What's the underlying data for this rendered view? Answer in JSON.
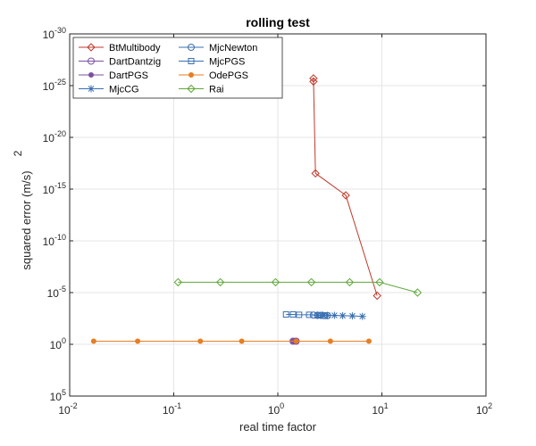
{
  "chart_data": {
    "type": "line",
    "title": "rolling test",
    "xlabel": "real time factor",
    "ylabel": "squared error (m/s)",
    "ylabel_superscript": "2",
    "x_scale": "log",
    "y_scale": "log",
    "y_direction": "reverse",
    "xlim": [
      0.01,
      100
    ],
    "ylim": [
      1e-30,
      100000.0
    ],
    "x_ticks": [
      {
        "base": "10",
        "exp": "-2"
      },
      {
        "base": "10",
        "exp": "-1"
      },
      {
        "base": "10",
        "exp": "0"
      },
      {
        "base": "10",
        "exp": "1"
      },
      {
        "base": "10",
        "exp": "2"
      }
    ],
    "y_ticks": [
      {
        "base": "10",
        "exp": "-30"
      },
      {
        "base": "10",
        "exp": "-25"
      },
      {
        "base": "10",
        "exp": "-20"
      },
      {
        "base": "10",
        "exp": "-15"
      },
      {
        "base": "10",
        "exp": "-10"
      },
      {
        "base": "10",
        "exp": "-5"
      },
      {
        "base": "10",
        "exp": "0"
      },
      {
        "base": "10",
        "exp": "5"
      }
    ],
    "grid": true,
    "legend_position": "top-left",
    "series": [
      {
        "name": "BtMultibody",
        "color": "#c0392b",
        "marker": "diamond",
        "x": [
          2.2,
          2.2,
          2.3,
          4.5,
          9.0
        ],
        "y": [
          4e-26,
          2e-26,
          3e-17,
          4e-15,
          2e-05
        ]
      },
      {
        "name": "DartDantzig",
        "color": "#7b4fa0",
        "marker": "circle",
        "x": [
          1.4,
          1.5
        ],
        "y": [
          0.5,
          0.5
        ]
      },
      {
        "name": "DartPGS",
        "color": "#7b4fa0",
        "marker": "dot",
        "x": [
          1.4,
          1.5
        ],
        "y": [
          0.5,
          0.5
        ]
      },
      {
        "name": "MjcCG",
        "color": "#3a6fb0",
        "marker": "asterisk",
        "x": [
          2.4,
          2.7,
          3.0,
          3.5,
          4.2,
          5.2,
          6.5
        ],
        "y": [
          0.0015,
          0.0015,
          0.0016,
          0.0016,
          0.0017,
          0.0018,
          0.002
        ]
      },
      {
        "name": "MjcNewton",
        "color": "#3a6fb0",
        "marker": "circle",
        "x": [
          2.2,
          2.4,
          2.6,
          2.8,
          3.0
        ],
        "y": [
          0.0015,
          0.0016,
          0.0016,
          0.0017,
          0.0017
        ]
      },
      {
        "name": "MjcPGS",
        "color": "#3a6fb0",
        "marker": "square",
        "x": [
          1.2,
          1.4,
          1.6,
          2.0,
          2.5
        ],
        "y": [
          0.0013,
          0.0013,
          0.0014,
          0.0014,
          0.0015
        ]
      },
      {
        "name": "OdePGS",
        "color": "#e67e22",
        "marker": "dot",
        "x": [
          0.017,
          0.045,
          0.18,
          0.45,
          1.5,
          3.2,
          7.5
        ],
        "y": [
          0.5,
          0.5,
          0.5,
          0.5,
          0.5,
          0.5,
          0.5
        ]
      },
      {
        "name": "Rai",
        "color": "#5fa83a",
        "marker": "diamond",
        "x": [
          0.11,
          0.28,
          0.95,
          2.1,
          4.9,
          9.5,
          22
        ],
        "y": [
          1e-06,
          1e-06,
          1e-06,
          1e-06,
          1e-06,
          1e-06,
          1e-05
        ]
      }
    ]
  }
}
